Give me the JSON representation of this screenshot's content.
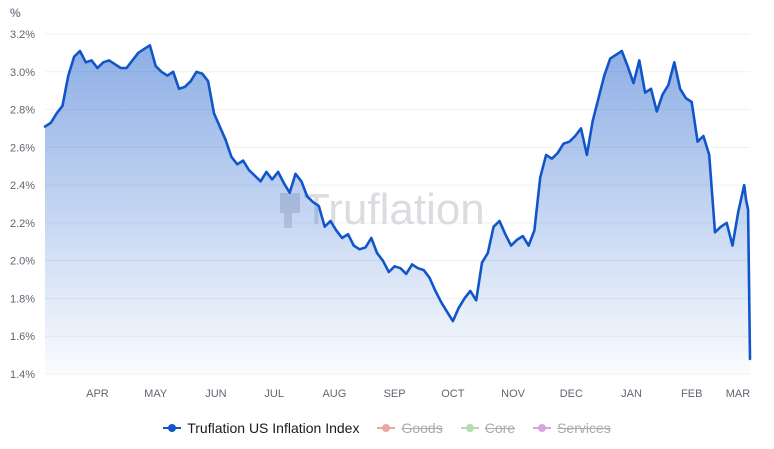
{
  "chart_data": {
    "type": "area",
    "title": "",
    "ylabel": "%",
    "ylim": [
      1.4,
      3.2
    ],
    "yticks": [
      1.4,
      1.6,
      1.8,
      2.0,
      2.2,
      2.4,
      2.6,
      2.8,
      3.0,
      3.2
    ],
    "ytick_labels": [
      "1.4%",
      "1.6%",
      "1.8%",
      "2.0%",
      "2.2%",
      "2.4%",
      "2.6%",
      "2.8%",
      "3.0%",
      "3.2%"
    ],
    "month_labels": [
      "APR",
      "MAY",
      "JUN",
      "JUL",
      "AUG",
      "SEP",
      "OCT",
      "NOV",
      "DEC",
      "JAN",
      "FEB",
      "MAR"
    ],
    "grid": true,
    "legend_position": "bottom-center",
    "series": [
      {
        "name": "Truflation US Inflation Index",
        "color": "#1156c9",
        "active": true,
        "x": [
          "2024-03-05",
          "2024-03-08",
          "2024-03-11",
          "2024-03-14",
          "2024-03-17",
          "2024-03-20",
          "2024-03-23",
          "2024-03-26",
          "2024-03-29",
          "2024-04-01",
          "2024-04-04",
          "2024-04-07",
          "2024-04-10",
          "2024-04-13",
          "2024-04-16",
          "2024-04-19",
          "2024-04-22",
          "2024-04-25",
          "2024-04-28",
          "2024-05-01",
          "2024-05-04",
          "2024-05-07",
          "2024-05-10",
          "2024-05-13",
          "2024-05-16",
          "2024-05-19",
          "2024-05-22",
          "2024-05-25",
          "2024-05-28",
          "2024-05-31",
          "2024-06-03",
          "2024-06-06",
          "2024-06-09",
          "2024-06-12",
          "2024-06-15",
          "2024-06-18",
          "2024-06-21",
          "2024-06-24",
          "2024-06-27",
          "2024-06-30",
          "2024-07-03",
          "2024-07-06",
          "2024-07-09",
          "2024-07-12",
          "2024-07-15",
          "2024-07-18",
          "2024-07-21",
          "2024-07-24",
          "2024-07-27",
          "2024-07-30",
          "2024-08-02",
          "2024-08-05",
          "2024-08-08",
          "2024-08-11",
          "2024-08-14",
          "2024-08-17",
          "2024-08-20",
          "2024-08-23",
          "2024-08-26",
          "2024-08-29",
          "2024-09-01",
          "2024-09-04",
          "2024-09-07",
          "2024-09-10",
          "2024-09-13",
          "2024-09-16",
          "2024-09-19",
          "2024-09-22",
          "2024-09-25",
          "2024-09-28",
          "2024-10-01",
          "2024-10-04",
          "2024-10-07",
          "2024-10-10",
          "2024-10-13",
          "2024-10-16",
          "2024-10-19",
          "2024-10-22",
          "2024-10-25",
          "2024-10-28",
          "2024-10-31",
          "2024-11-03",
          "2024-11-06",
          "2024-11-09",
          "2024-11-12",
          "2024-11-15",
          "2024-11-18",
          "2024-11-21",
          "2024-11-24",
          "2024-11-27",
          "2024-11-30",
          "2024-12-03",
          "2024-12-06",
          "2024-12-09",
          "2024-12-12",
          "2024-12-15",
          "2024-12-18",
          "2024-12-21",
          "2024-12-24",
          "2024-12-27",
          "2024-12-30",
          "2025-01-02",
          "2025-01-05",
          "2025-01-08",
          "2025-01-11",
          "2025-01-14",
          "2025-01-17",
          "2025-01-20",
          "2025-01-23",
          "2025-01-26",
          "2025-01-29",
          "2025-02-01",
          "2025-02-04",
          "2025-02-07",
          "2025-02-10",
          "2025-02-13",
          "2025-02-16",
          "2025-02-19",
          "2025-02-22",
          "2025-02-25",
          "2025-02-28",
          "2025-03-01",
          "2025-03-02",
          "2025-03-03"
        ],
        "values": [
          2.71,
          2.73,
          2.78,
          2.82,
          2.98,
          3.08,
          3.11,
          3.05,
          3.06,
          3.02,
          3.05,
          3.06,
          3.04,
          3.02,
          3.02,
          3.06,
          3.1,
          3.12,
          3.14,
          3.03,
          3.0,
          2.98,
          3.0,
          2.91,
          2.92,
          2.95,
          3.0,
          2.99,
          2.95,
          2.78,
          2.71,
          2.64,
          2.55,
          2.51,
          2.53,
          2.48,
          2.45,
          2.42,
          2.47,
          2.43,
          2.47,
          2.41,
          2.36,
          2.46,
          2.42,
          2.34,
          2.31,
          2.29,
          2.18,
          2.21,
          2.16,
          2.12,
          2.14,
          2.08,
          2.06,
          2.07,
          2.12,
          2.04,
          2.0,
          1.94,
          1.97,
          1.96,
          1.93,
          1.98,
          1.96,
          1.95,
          1.91,
          1.84,
          1.78,
          1.73,
          1.68,
          1.75,
          1.8,
          1.84,
          1.79,
          1.99,
          2.04,
          2.18,
          2.21,
          2.14,
          2.08,
          2.11,
          2.13,
          2.08,
          2.16,
          2.44,
          2.56,
          2.54,
          2.57,
          2.62,
          2.63,
          2.66,
          2.7,
          2.56,
          2.74,
          2.86,
          2.98,
          3.07,
          3.09,
          3.11,
          3.03,
          2.94,
          3.06,
          2.89,
          2.91,
          2.79,
          2.88,
          2.93,
          3.05,
          2.91,
          2.86,
          2.84,
          2.63,
          2.66,
          2.56,
          2.15,
          2.18,
          2.2,
          2.08,
          2.26,
          2.4,
          2.32,
          2.27,
          1.48
        ]
      },
      {
        "name": "Goods",
        "color": "#eaa6a0",
        "active": false
      },
      {
        "name": "Core",
        "color": "#b5ddb4",
        "active": false
      },
      {
        "name": "Services",
        "color": "#d8a3e0",
        "active": false
      }
    ]
  },
  "watermark": {
    "text": "Truflation"
  }
}
